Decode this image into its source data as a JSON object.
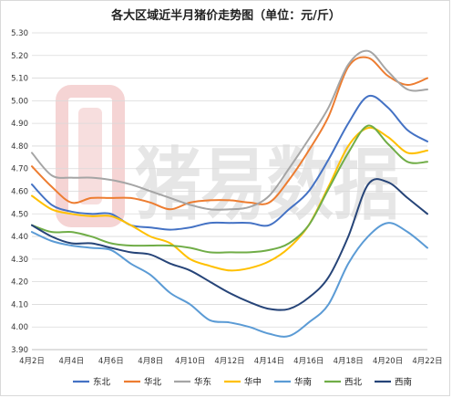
{
  "chart_data": {
    "type": "line",
    "title": "各大区域近半月猪价走势图（单位：元/斤）",
    "xlabel": "",
    "ylabel": "",
    "ylim": [
      3.9,
      5.3
    ],
    "ytick_step": 0.1,
    "grid": "horizontal",
    "legend_position": "bottom",
    "x": [
      "4月2日",
      "4月3日",
      "4月4日",
      "4月5日",
      "4月6日",
      "4月7日",
      "4月8日",
      "4月9日",
      "4月10日",
      "4月11日",
      "4月12日",
      "4月13日",
      "4月14日",
      "4月15日",
      "4月16日",
      "4月17日",
      "4月18日",
      "4月19日",
      "4月20日",
      "4月21日",
      "4月22日"
    ],
    "x_tick_labels": [
      "4月2日",
      "4月4日",
      "4月6日",
      "4月8日",
      "4月10日",
      "4月12日",
      "4月14日",
      "4月16日",
      "4月18日",
      "4月20日",
      "4月22日"
    ],
    "series": [
      {
        "name": "东北",
        "color": "#4472C4",
        "values": [
          4.63,
          4.54,
          4.51,
          4.5,
          4.5,
          4.45,
          4.44,
          4.43,
          4.44,
          4.46,
          4.46,
          4.46,
          4.45,
          4.52,
          4.6,
          4.74,
          4.9,
          5.02,
          4.97,
          4.87,
          4.82
        ]
      },
      {
        "name": "华北",
        "color": "#ED7D31",
        "values": [
          4.71,
          4.62,
          4.55,
          4.57,
          4.57,
          4.57,
          4.55,
          4.52,
          4.55,
          4.56,
          4.56,
          4.55,
          4.55,
          4.65,
          4.78,
          4.93,
          5.15,
          5.19,
          5.11,
          5.07,
          5.1
        ]
      },
      {
        "name": "华东",
        "color": "#A5A5A5",
        "values": [
          4.77,
          4.67,
          4.66,
          4.66,
          4.65,
          4.63,
          4.6,
          4.57,
          4.54,
          4.52,
          4.52,
          4.53,
          4.58,
          4.7,
          4.83,
          4.97,
          5.16,
          5.22,
          5.13,
          5.05,
          5.05
        ]
      },
      {
        "name": "华中",
        "color": "#FFC000",
        "values": [
          4.58,
          4.52,
          4.5,
          4.49,
          4.49,
          4.45,
          4.4,
          4.37,
          4.3,
          4.27,
          4.25,
          4.26,
          4.29,
          4.35,
          4.45,
          4.62,
          4.8,
          4.88,
          4.84,
          4.77,
          4.78
        ]
      },
      {
        "name": "华南",
        "color": "#5B9BD5",
        "values": [
          4.42,
          4.38,
          4.36,
          4.35,
          4.34,
          4.28,
          4.23,
          4.15,
          4.1,
          4.03,
          4.02,
          4.0,
          3.97,
          3.96,
          4.02,
          4.1,
          4.28,
          4.4,
          4.46,
          4.42,
          4.35
        ]
      },
      {
        "name": "西北",
        "color": "#70AD47",
        "values": [
          4.45,
          4.42,
          4.42,
          4.4,
          4.37,
          4.36,
          4.36,
          4.36,
          4.35,
          4.33,
          4.33,
          4.33,
          4.34,
          4.37,
          4.45,
          4.61,
          4.77,
          4.89,
          4.81,
          4.73,
          4.73
        ]
      },
      {
        "name": "西南",
        "color": "#264478",
        "values": [
          4.45,
          4.4,
          4.37,
          4.37,
          4.35,
          4.33,
          4.32,
          4.28,
          4.25,
          4.2,
          4.15,
          4.11,
          4.08,
          4.08,
          4.13,
          4.22,
          4.4,
          4.63,
          4.64,
          4.57,
          4.5
        ]
      }
    ]
  },
  "watermark": {
    "text": "猪易数据",
    "logo_color": "#e8a0a0"
  }
}
